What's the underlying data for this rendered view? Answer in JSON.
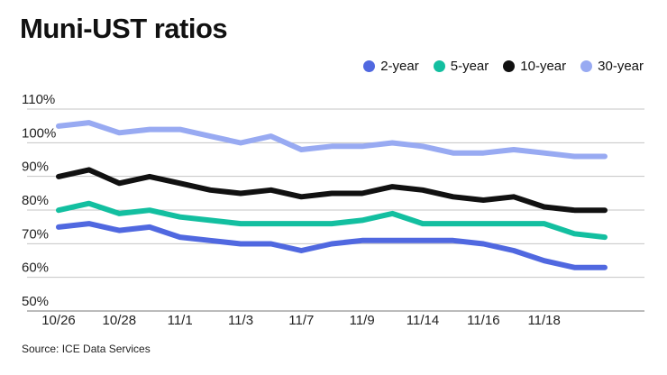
{
  "chart_data": {
    "type": "line",
    "title": "Muni-UST ratios",
    "source": "Source: ICE Data Services",
    "xlabel": "",
    "ylabel": "",
    "x_tick_labels": [
      "10/26",
      "10/28",
      "11/1",
      "11/3",
      "11/7",
      "11/9",
      "11/14",
      "11/16",
      "11/18"
    ],
    "y_tick_labels": [
      "50%",
      "60%",
      "70%",
      "80%",
      "90%",
      "100%",
      "110%"
    ],
    "y_ticks": [
      50,
      60,
      70,
      80,
      90,
      100,
      110
    ],
    "ylim": [
      48,
      112
    ],
    "grid": true,
    "legend_position": "top-right",
    "series": [
      {
        "name": "2-year",
        "color": "#5068e0",
        "values": [
          72,
          73,
          71,
          72,
          69,
          68,
          67,
          67,
          65,
          67,
          68,
          68,
          68,
          68,
          67,
          65,
          62,
          60,
          60
        ]
      },
      {
        "name": "5-year",
        "color": "#13bfa0",
        "values": [
          77,
          79,
          76,
          77,
          75,
          74,
          73,
          73,
          73,
          73,
          74,
          76,
          73,
          73,
          73,
          73,
          73,
          70,
          69
        ]
      },
      {
        "name": "10-year",
        "color": "#111111",
        "values": [
          87,
          89,
          85,
          87,
          85,
          83,
          82,
          83,
          81,
          82,
          82,
          84,
          83,
          81,
          80,
          81,
          78,
          77,
          77
        ]
      },
      {
        "name": "30-year",
        "color": "#98aaf2",
        "values": [
          102,
          103,
          100,
          101,
          101,
          99,
          97,
          99,
          95,
          96,
          96,
          97,
          96,
          94,
          94,
          95,
          94,
          93,
          93
        ]
      }
    ]
  }
}
